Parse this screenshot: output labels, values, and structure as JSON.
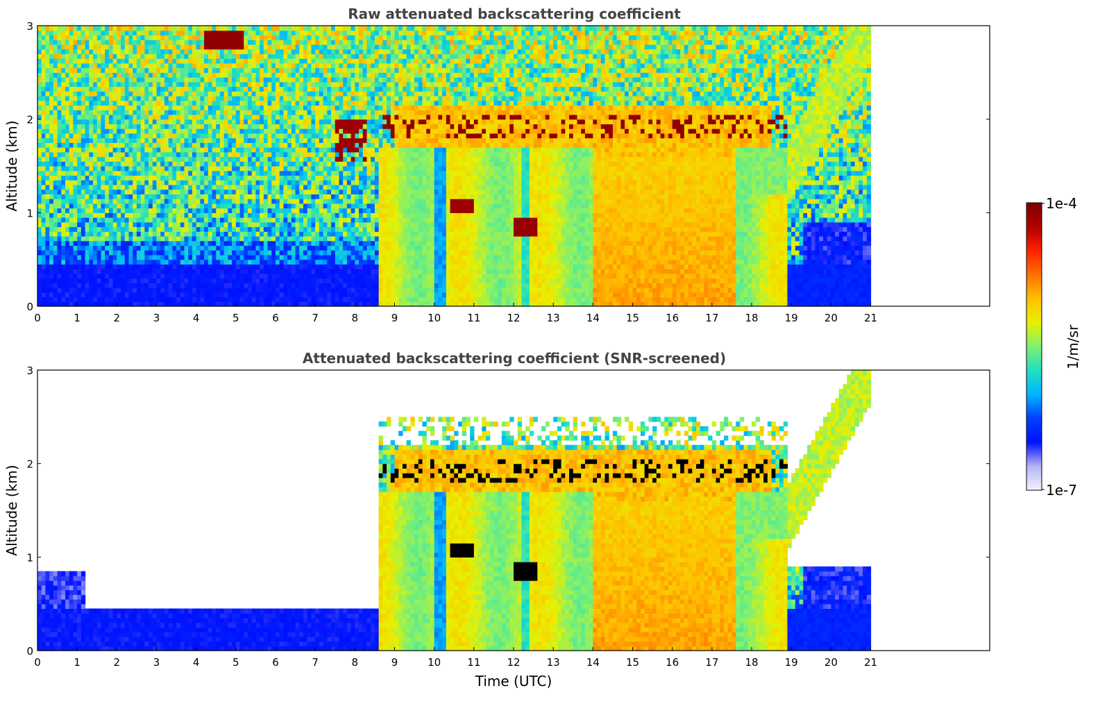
{
  "chart_data": [
    {
      "type": "heatmap",
      "title": "Raw attenuated backscattering coefficient",
      "xlabel": "",
      "ylabel": "Altitude (km)",
      "xlim": [
        0,
        24
      ],
      "ylim": [
        0,
        3
      ],
      "x_ticks": [
        "0",
        "1",
        "2",
        "3",
        "4",
        "5",
        "6",
        "7",
        "8",
        "9",
        "10",
        "11",
        "12",
        "13",
        "14",
        "15",
        "16",
        "17",
        "18",
        "19",
        "20",
        "21"
      ],
      "y_ticks": [
        "0",
        "1",
        "2",
        "3"
      ],
      "data_end_time": 21,
      "screened": false,
      "regions": [
        {
          "desc": "near-surface aerosol layer",
          "t0": 0,
          "t1": 8.65,
          "z0": 0,
          "z1": 0.45,
          "level": 0.18
        },
        {
          "desc": "boundary layer",
          "t0": 8.65,
          "t1": 18.9,
          "z0": 0,
          "z1": 1.7,
          "level": 0.58
        },
        {
          "desc": "strong afternoon aerosol",
          "t0": 14,
          "t1": 17.5,
          "z0": 0,
          "z1": 1.6,
          "level": 0.72
        },
        {
          "desc": "cloud layer",
          "t0": 9,
          "t1": 18.5,
          "z0": 1.75,
          "z1": 2.2,
          "level": 0.95
        },
        {
          "desc": "evening residual layer",
          "t0": 19,
          "t1": 21,
          "z0": 0,
          "z1": 0.9,
          "level": 0.18
        }
      ]
    },
    {
      "type": "heatmap",
      "title": "Attenuated backscattering coefficient (SNR-screened)",
      "xlabel": "Time (UTC)",
      "ylabel": "Altitude (km)",
      "xlim": [
        0,
        24
      ],
      "ylim": [
        0,
        3
      ],
      "x_ticks": [
        "0",
        "1",
        "2",
        "3",
        "4",
        "5",
        "6",
        "7",
        "8",
        "9",
        "10",
        "11",
        "12",
        "13",
        "14",
        "15",
        "16",
        "17",
        "18",
        "19",
        "20",
        "21"
      ],
      "y_ticks": [
        "0",
        "1",
        "2",
        "3"
      ],
      "data_end_time": 21,
      "screened": true
    }
  ],
  "colorbar": {
    "label": "1/m/sr",
    "max_label": "1e-4",
    "min_label": "1e-7",
    "scale": "log",
    "colors": [
      "#f2f2ff",
      "#b4b4f5",
      "#0010ff",
      "#0040ff",
      "#00b4ff",
      "#20e0c0",
      "#80f070",
      "#e8f000",
      "#ffc000",
      "#ff7000",
      "#ff2000",
      "#b00000",
      "#800000"
    ]
  }
}
